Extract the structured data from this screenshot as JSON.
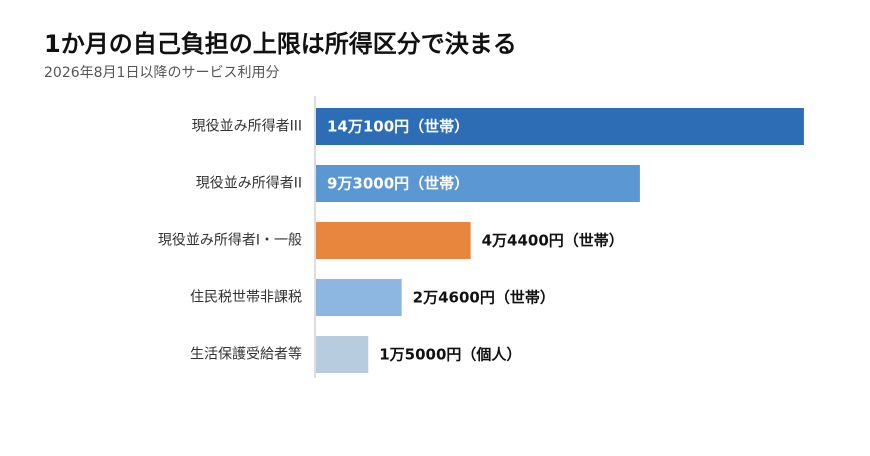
{
  "chart_data": {
    "type": "bar",
    "orientation": "horizontal",
    "title": "1か月の自己負担の上限は所得区分で決まる",
    "subtitle": "2026年8月1日以降のサービス利用分",
    "categories": [
      "現役並み所得者III",
      "現役並み所得者II",
      "現役並み所得者I・一般",
      "住民税世帯非課税",
      "生活保護受給者等"
    ],
    "values": [
      140100,
      93000,
      44400,
      24600,
      15000
    ],
    "value_labels": [
      "14万100円（世帯）",
      "9万3000円（世帯）",
      "4万4400円（世帯）",
      "2万4600円（世帯）",
      "1万5000円（個人）"
    ],
    "colors": [
      "#2d6db5",
      "#5b97d3",
      "#e8863d",
      "#8db7e1",
      "#b8cce0"
    ],
    "xlim": [
      0,
      145000
    ],
    "grid": false,
    "legend": "none"
  }
}
